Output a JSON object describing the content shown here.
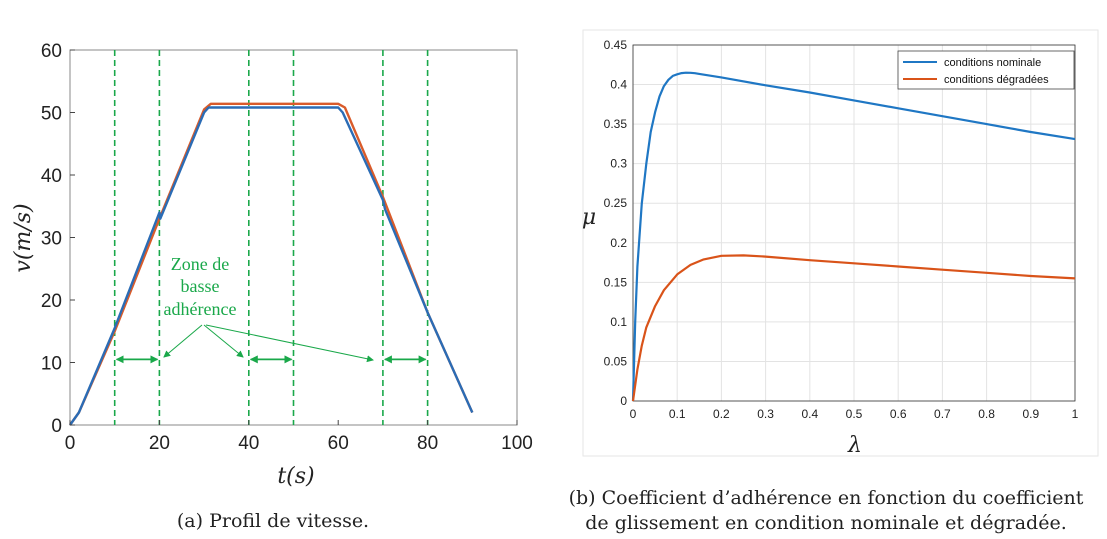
{
  "chart_data": [
    {
      "type": "line",
      "caption": "(a) Profil de vitesse.",
      "xlabel": "t(s)",
      "ylabel": "v(m/s)",
      "xlim": [
        0,
        100
      ],
      "ylim": [
        0,
        60
      ],
      "xticks": [
        "0",
        "20",
        "40",
        "60",
        "80",
        "100"
      ],
      "yticks": [
        "0",
        "10",
        "20",
        "30",
        "40",
        "50",
        "60"
      ],
      "grid": false,
      "colors": {
        "series_a": "#2b6cb5",
        "series_b": "#d95b2a",
        "markers": "#1aa84a"
      },
      "series": [
        {
          "color": "#2b6cb5",
          "x": [
            0,
            2,
            10,
            20,
            20.2,
            30,
            31,
            60,
            61,
            70,
            70.5,
            80,
            90
          ],
          "y": [
            0,
            2,
            15.5,
            34,
            33,
            50,
            50.8,
            50.8,
            50,
            36,
            34.5,
            18,
            2
          ]
        },
        {
          "color": "#d95b2a",
          "x": [
            0,
            2,
            10,
            20,
            30,
            31.5,
            60,
            61.5,
            70,
            80,
            90
          ],
          "y": [
            0,
            2,
            15,
            33,
            50.5,
            51.4,
            51.4,
            50.8,
            36.5,
            18,
            2
          ]
        }
      ],
      "vertical_lines_x": [
        10,
        20,
        40,
        50,
        70,
        80
      ],
      "zones": [
        [
          10,
          20
        ],
        [
          40,
          50
        ],
        [
          70,
          80
        ]
      ],
      "zone_arrow_y": 10.5,
      "annotation": {
        "lines": [
          "Zone de",
          "basse",
          "adhérence"
        ]
      }
    },
    {
      "type": "line",
      "caption_lines": [
        "(b) Coefficient d’adhérence en fonction du coefficient",
        "de glissement en condition nominale et dégradée."
      ],
      "xlabel": "λ",
      "ylabel": "μ",
      "xlim": [
        0,
        1
      ],
      "ylim": [
        0,
        0.45
      ],
      "xticks": [
        "0",
        "0.1",
        "0.2",
        "0.3",
        "0.4",
        "0.5",
        "0.6",
        "0.7",
        "0.8",
        "0.9",
        "1"
      ],
      "yticks": [
        "0",
        "0.05",
        "0.1",
        "0.15",
        "0.2",
        "0.25",
        "0.3",
        "0.35",
        "0.4",
        "0.45"
      ],
      "grid": true,
      "legend": "top-right",
      "series": [
        {
          "name": "conditions nominale",
          "color": "#1f77c4",
          "x": [
            0,
            0.005,
            0.01,
            0.02,
            0.03,
            0.04,
            0.05,
            0.06,
            0.07,
            0.08,
            0.09,
            0.1,
            0.11,
            0.12,
            0.13,
            0.14,
            0.15,
            0.2,
            0.3,
            0.4,
            0.5,
            0.6,
            0.7,
            0.8,
            0.9,
            1.0
          ],
          "y": [
            0,
            0.1,
            0.17,
            0.25,
            0.3,
            0.34,
            0.365,
            0.385,
            0.398,
            0.406,
            0.411,
            0.413,
            0.4145,
            0.415,
            0.4148,
            0.4143,
            0.4135,
            0.409,
            0.399,
            0.39,
            0.38,
            0.37,
            0.36,
            0.35,
            0.34,
            0.331
          ]
        },
        {
          "name": "conditions dégradées",
          "color": "#d95319",
          "x": [
            0,
            0.01,
            0.02,
            0.03,
            0.05,
            0.07,
            0.1,
            0.13,
            0.16,
            0.2,
            0.25,
            0.3,
            0.4,
            0.5,
            0.6,
            0.7,
            0.8,
            0.9,
            1.0
          ],
          "y": [
            0,
            0.04,
            0.07,
            0.093,
            0.12,
            0.14,
            0.16,
            0.172,
            0.179,
            0.1835,
            0.184,
            0.1825,
            0.178,
            0.174,
            0.17,
            0.166,
            0.162,
            0.158,
            0.155
          ]
        }
      ]
    }
  ]
}
